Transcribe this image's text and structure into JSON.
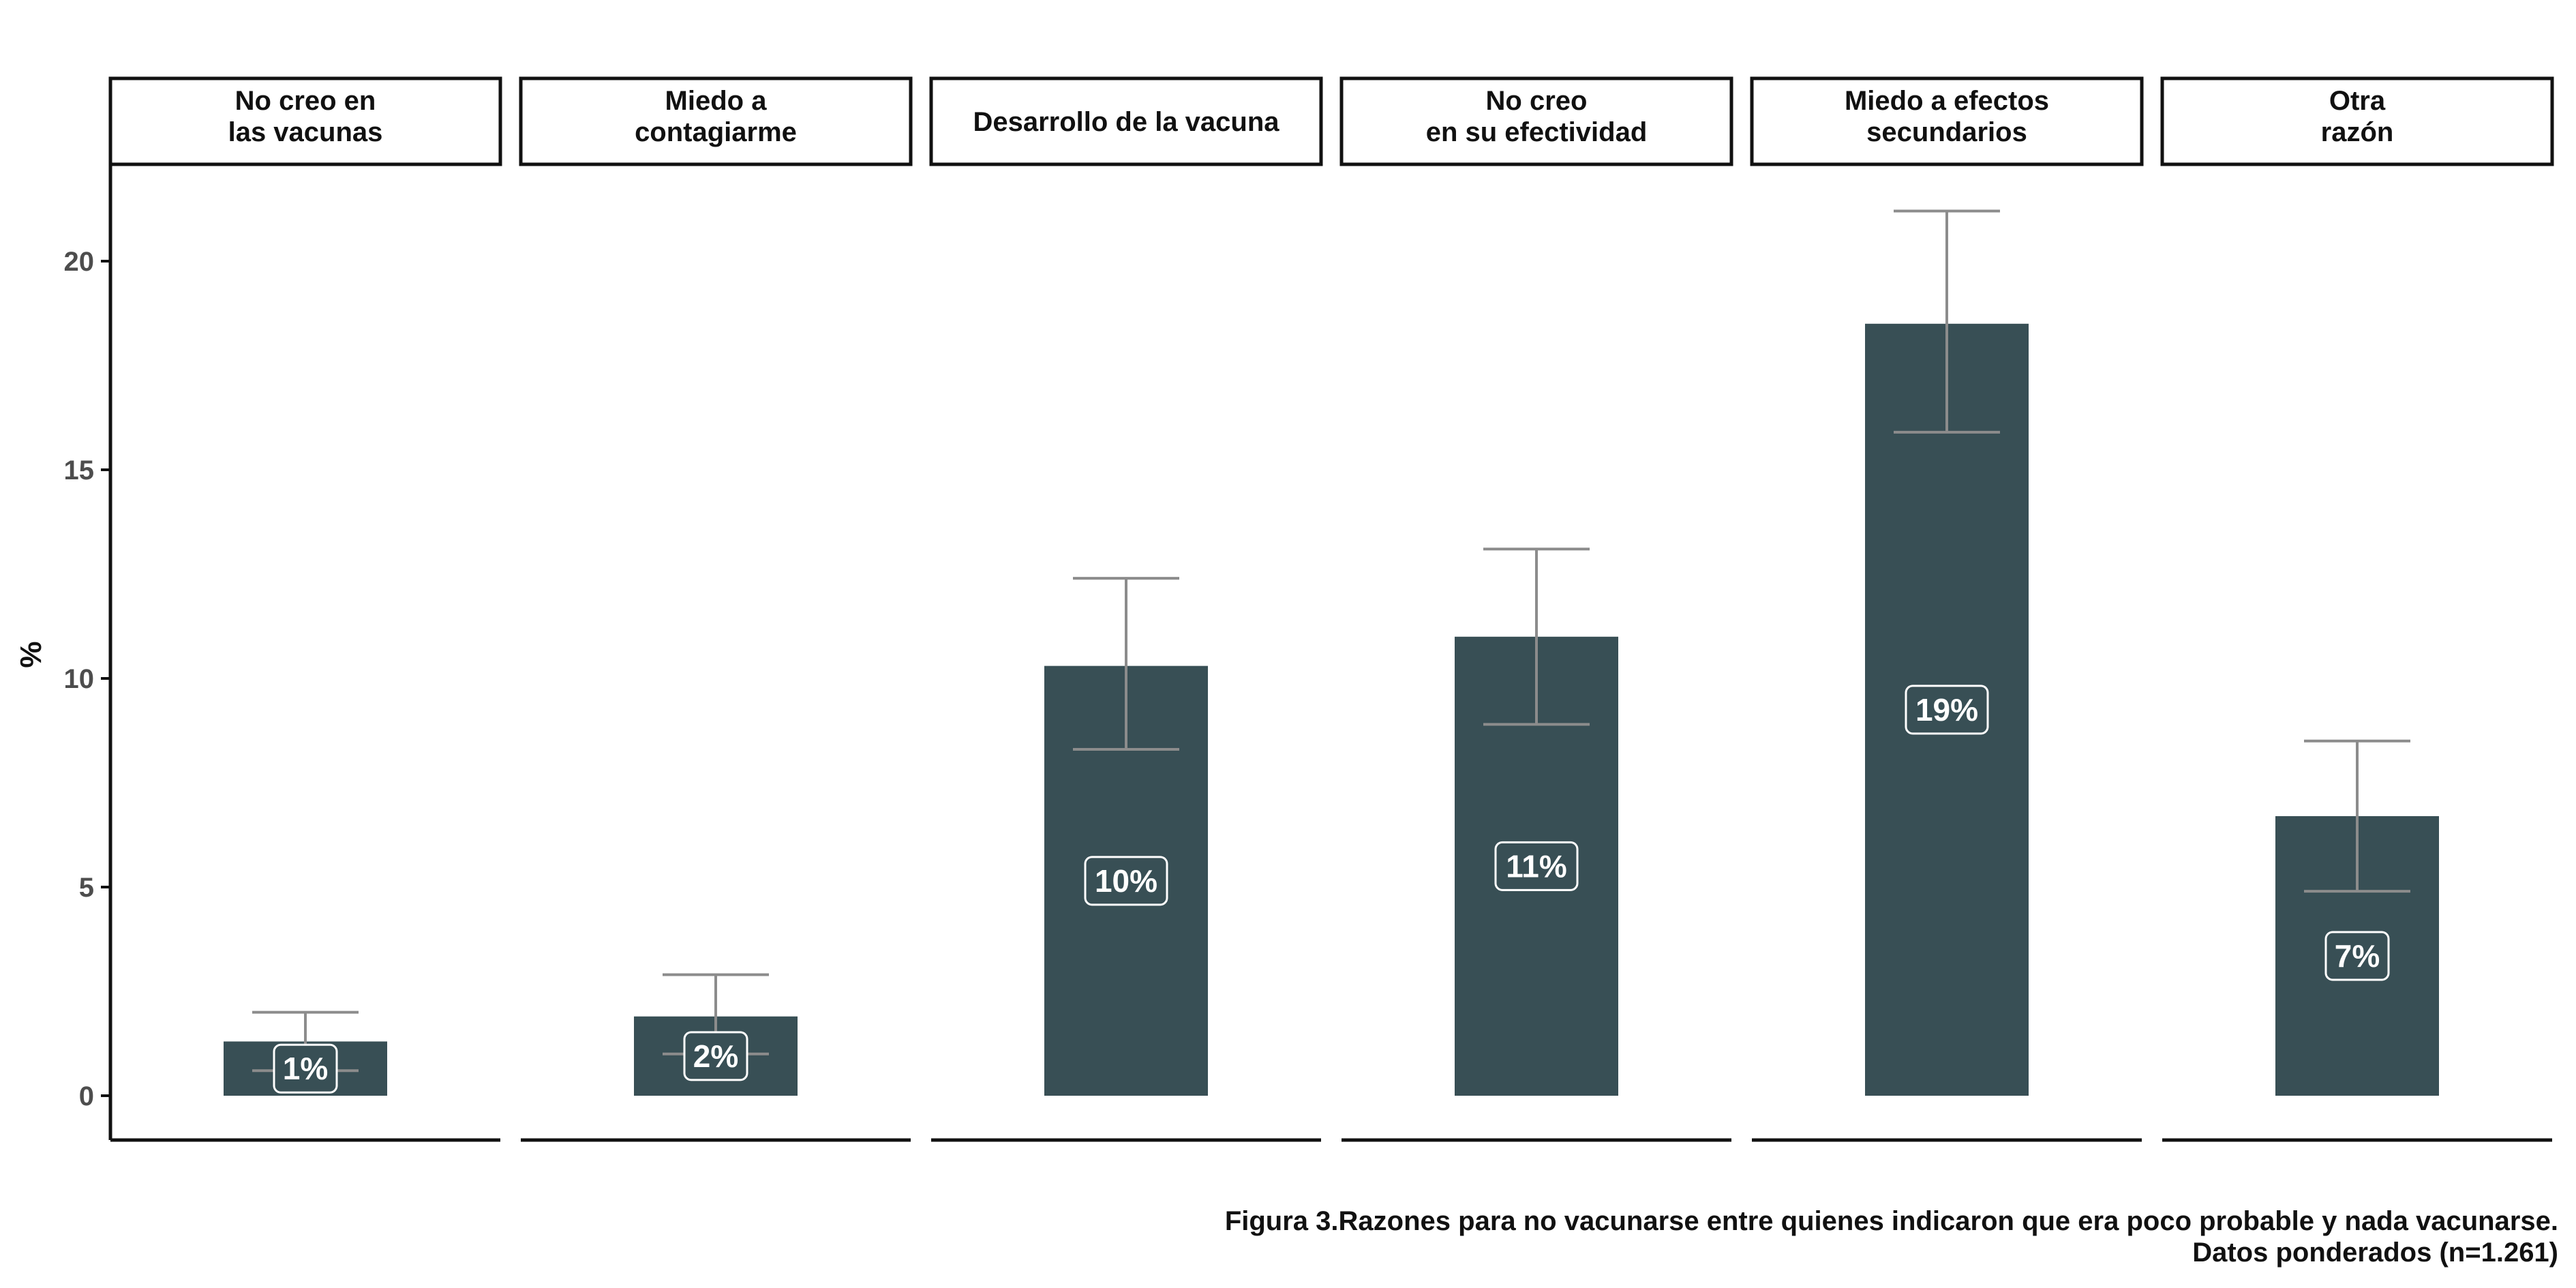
{
  "chart_data": {
    "type": "bar",
    "ylabel": "%",
    "ylim": [
      0,
      22
    ],
    "yticks": [
      0,
      5,
      10,
      15,
      20
    ],
    "grid": false,
    "facets": true,
    "categories": [
      "No creo en\nlas vacunas",
      "Miedo a\ncontagiarme",
      "Desarrollo de la vacuna",
      "No creo\nen su efectividad",
      "Miedo a efectos\nsecundarios",
      "Otra\nrazón"
    ],
    "values": [
      1.3,
      1.9,
      10.3,
      11.0,
      18.5,
      6.7
    ],
    "error_low": [
      0.6,
      1.0,
      8.3,
      8.9,
      15.9,
      4.9
    ],
    "error_high": [
      2.0,
      2.9,
      12.4,
      13.1,
      21.2,
      8.5
    ],
    "data_labels": [
      "1%",
      "2%",
      "10%",
      "11%",
      "19%",
      "7%"
    ],
    "colors": {
      "bar": "#384f55",
      "errorbar": "#8c8c8c",
      "label_text": "#ffffff"
    }
  },
  "caption": {
    "line1": "Figura 3.Razones para no vacunarse entre quienes indicaron que era poco probable y nada vacunarse.",
    "line2": "Datos ponderados (n=1.261)"
  }
}
